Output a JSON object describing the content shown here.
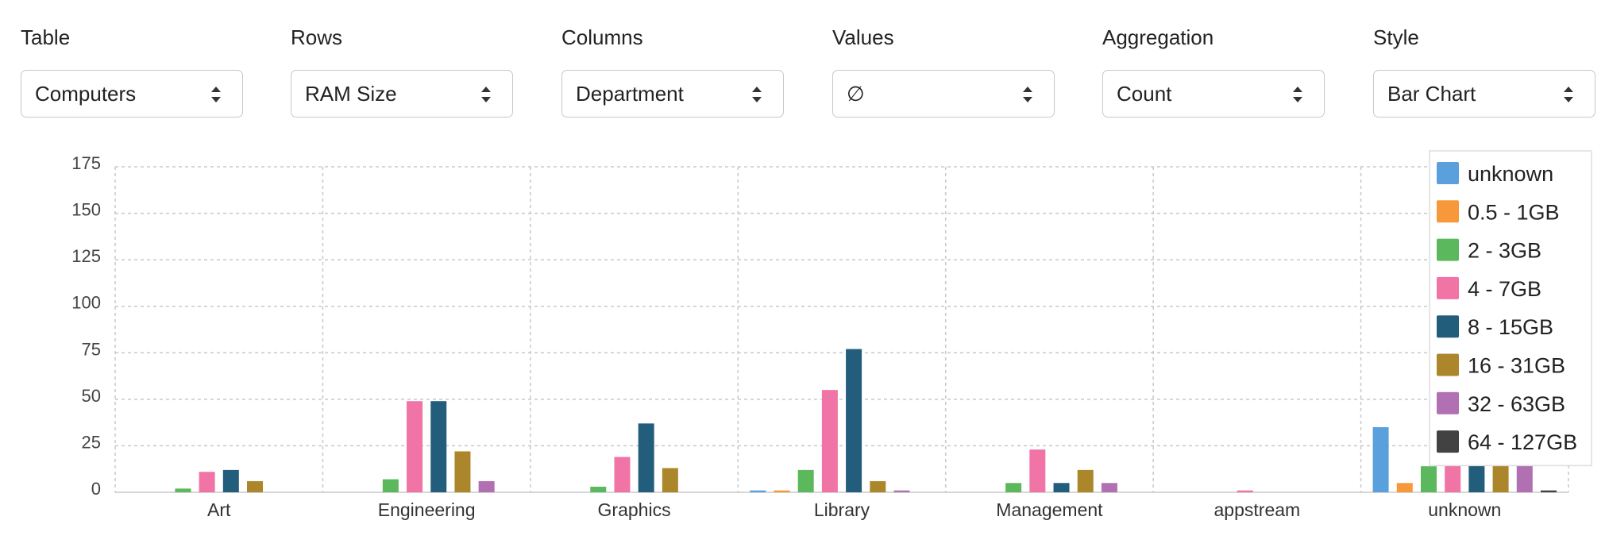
{
  "controls": [
    {
      "label": "Table",
      "value": "Computers"
    },
    {
      "label": "Rows",
      "value": "RAM Size"
    },
    {
      "label": "Columns",
      "value": "Department"
    },
    {
      "label": "Values",
      "value": "∅"
    },
    {
      "label": "Aggregation",
      "value": "Count"
    },
    {
      "label": "Style",
      "value": "Bar Chart"
    }
  ],
  "icons": {
    "select_arrow": "up-down-caret-icon"
  },
  "chart_data": {
    "type": "bar",
    "categories": [
      "Art",
      "Engineering",
      "Graphics",
      "Library",
      "Management",
      "appstream",
      "unknown"
    ],
    "yticks": [
      0,
      25,
      50,
      75,
      100,
      125,
      150,
      175
    ],
    "ylim": [
      0,
      175
    ],
    "grid": true,
    "legend_position": "top-right",
    "series": [
      {
        "name": "unknown",
        "color": "#5aa0dc",
        "values": [
          0,
          0,
          0,
          1,
          0,
          0,
          35
        ]
      },
      {
        "name": "0.5 - 1GB",
        "color": "#f7993b",
        "values": [
          0,
          0,
          0,
          1,
          0,
          0,
          5
        ]
      },
      {
        "name": "2 - 3GB",
        "color": "#5cb85c",
        "values": [
          2,
          7,
          3,
          12,
          5,
          0,
          14
        ]
      },
      {
        "name": "4 - 7GB",
        "color": "#f074a6",
        "values": [
          11,
          49,
          19,
          55,
          23,
          1,
          25
        ]
      },
      {
        "name": "8 - 15GB",
        "color": "#235d7c",
        "values": [
          12,
          49,
          37,
          77,
          5,
          0,
          30
        ]
      },
      {
        "name": "16 - 31GB",
        "color": "#ab862b",
        "values": [
          6,
          22,
          13,
          6,
          12,
          0,
          22
        ]
      },
      {
        "name": "32 - 63GB",
        "color": "#b070b2",
        "values": [
          0,
          6,
          0,
          1,
          5,
          0,
          23
        ]
      },
      {
        "name": "64 - 127GB",
        "color": "#424242",
        "values": [
          0,
          0,
          0,
          0,
          0,
          0,
          1
        ]
      }
    ]
  }
}
